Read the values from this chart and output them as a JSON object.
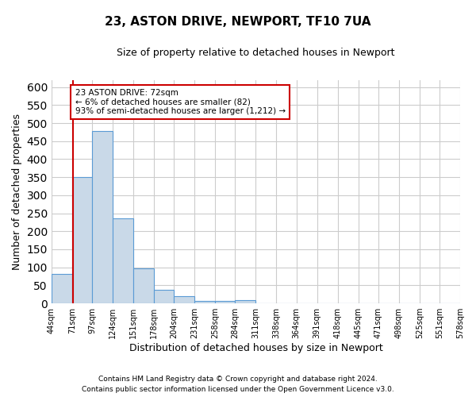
{
  "title": "23, ASTON DRIVE, NEWPORT, TF10 7UA",
  "subtitle": "Size of property relative to detached houses in Newport",
  "xlabel": "Distribution of detached houses by size in Newport",
  "ylabel": "Number of detached properties",
  "bar_edges": [
    44,
    71,
    97,
    124,
    151,
    178,
    204,
    231,
    258,
    284,
    311,
    338,
    364,
    391,
    418,
    445,
    471,
    498,
    525,
    551,
    578
  ],
  "bar_heights": [
    82,
    350,
    478,
    235,
    96,
    38,
    20,
    7,
    6,
    8,
    0,
    0,
    0,
    0,
    0,
    0,
    0,
    0,
    0,
    0
  ],
  "bar_color": "#c9d9e8",
  "bar_edge_color": "#5b9bd5",
  "property_size": 72,
  "property_line_color": "#cc0000",
  "annotation_line1": "23 ASTON DRIVE: 72sqm",
  "annotation_line2": "← 6% of detached houses are smaller (82)",
  "annotation_line3": "93% of semi-detached houses are larger (1,212) →",
  "annotation_box_color": "#ffffff",
  "annotation_box_edge_color": "#cc0000",
  "footer_line1": "Contains HM Land Registry data © Crown copyright and database right 2024.",
  "footer_line2": "Contains public sector information licensed under the Open Government Licence v3.0.",
  "ylim": [
    0,
    620
  ],
  "yticks": [
    0,
    50,
    100,
    150,
    200,
    250,
    300,
    350,
    400,
    450,
    500,
    550,
    600
  ],
  "xlim": [
    44,
    578
  ],
  "background_color": "#ffffff",
  "grid_color": "#cccccc",
  "title_fontsize": 11,
  "subtitle_fontsize": 9,
  "ylabel_fontsize": 9,
  "xlabel_fontsize": 9,
  "tick_fontsize": 7,
  "footer_fontsize": 6.5
}
